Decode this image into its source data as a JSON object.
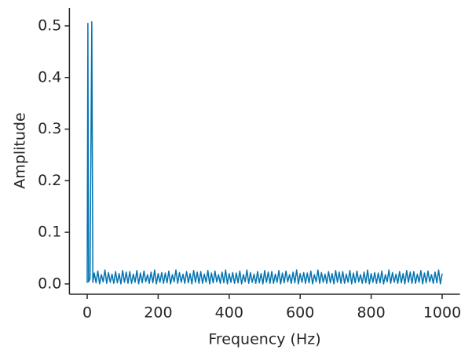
{
  "chart_data": {
    "type": "line",
    "xlabel": "Frequency (Hz)",
    "ylabel": "Amplitude",
    "xlim": [
      -50,
      1050
    ],
    "xticks": [
      0,
      200,
      400,
      600,
      800,
      1000
    ],
    "ylim": [
      -0.02,
      0.535
    ],
    "yticks": [
      {
        "value": 0,
        "label": "0.0"
      },
      0.1,
      0.2,
      0.3,
      0.4,
      0.5
    ],
    "series": [
      {
        "color": "#0173b2",
        "x": [
          0,
          2,
          4,
          8,
          13,
          16,
          20,
          25,
          30,
          35,
          40,
          45,
          50,
          55,
          60,
          65,
          70,
          75,
          80,
          85,
          90,
          95,
          100,
          105,
          110,
          115,
          120,
          125,
          130,
          135,
          140,
          145,
          150,
          155,
          160,
          165,
          170,
          175,
          180,
          185,
          190,
          195,
          200,
          205,
          210,
          215,
          220,
          225,
          230,
          235,
          240,
          245,
          250,
          255,
          260,
          265,
          270,
          275,
          280,
          285,
          290,
          295,
          300,
          305,
          310,
          315,
          320,
          325,
          330,
          335,
          340,
          345,
          350,
          355,
          360,
          365,
          370,
          375,
          380,
          385,
          390,
          395,
          400,
          405,
          410,
          415,
          420,
          425,
          430,
          435,
          440,
          445,
          450,
          455,
          460,
          465,
          470,
          475,
          480,
          485,
          490,
          495,
          500,
          505,
          510,
          515,
          520,
          525,
          530,
          535,
          540,
          545,
          550,
          555,
          560,
          565,
          570,
          575,
          580,
          585,
          590,
          595,
          600,
          605,
          610,
          615,
          620,
          625,
          630,
          635,
          640,
          645,
          650,
          655,
          660,
          665,
          670,
          675,
          680,
          685,
          690,
          695,
          700,
          705,
          710,
          715,
          720,
          725,
          730,
          735,
          740,
          745,
          750,
          755,
          760,
          765,
          770,
          775,
          780,
          785,
          790,
          795,
          800,
          805,
          810,
          815,
          820,
          825,
          830,
          835,
          840,
          845,
          850,
          855,
          860,
          865,
          870,
          875,
          880,
          885,
          890,
          895,
          900,
          905,
          910,
          915,
          920,
          925,
          930,
          935,
          940,
          945,
          950,
          955,
          960,
          965,
          970,
          975,
          980,
          985,
          990,
          995,
          1000
        ],
        "values": [
          0.002,
          0.505,
          0.004,
          0.01,
          0.508,
          0.003,
          0.021,
          0.002,
          0.025,
          0,
          0.018,
          0.004,
          0.027,
          0.001,
          0.022,
          0.003,
          0.019,
          0.001,
          0.024,
          0.002,
          0.02,
          0,
          0.026,
          0.003,
          0.023,
          0.001,
          0.024,
          0.001,
          0.019,
          0.003,
          0.026,
          0,
          0.021,
          0.002,
          0.025,
          0.004,
          0.018,
          0.001,
          0.023,
          0.002,
          0.027,
          0,
          0.02,
          0.003,
          0.022,
          0.001,
          0.021,
          0.002,
          0.025,
          0,
          0.018,
          0.004,
          0.027,
          0.001,
          0.022,
          0.003,
          0.019,
          0.001,
          0.024,
          0.002,
          0.02,
          0,
          0.026,
          0.003,
          0.023,
          0.001,
          0.024,
          0.001,
          0.019,
          0.003,
          0.026,
          0,
          0.021,
          0.002,
          0.025,
          0.004,
          0.018,
          0.001,
          0.023,
          0.002,
          0.027,
          0,
          0.02,
          0.003,
          0.022,
          0.001,
          0.021,
          0.002,
          0.025,
          0,
          0.018,
          0.004,
          0.027,
          0.001,
          0.022,
          0.003,
          0.019,
          0.001,
          0.024,
          0.002,
          0.02,
          0,
          0.026,
          0.003,
          0.023,
          0.001,
          0.024,
          0.001,
          0.019,
          0.003,
          0.026,
          0,
          0.021,
          0.002,
          0.025,
          0.004,
          0.018,
          0.001,
          0.023,
          0.002,
          0.027,
          0,
          0.02,
          0.003,
          0.022,
          0.001,
          0.021,
          0.002,
          0.025,
          0,
          0.018,
          0.004,
          0.027,
          0.001,
          0.022,
          0.003,
          0.019,
          0.001,
          0.024,
          0.002,
          0.02,
          0,
          0.026,
          0.003,
          0.023,
          0.001,
          0.024,
          0.001,
          0.019,
          0.003,
          0.026,
          0,
          0.021,
          0.002,
          0.025,
          0.004,
          0.018,
          0.001,
          0.023,
          0.002,
          0.027,
          0,
          0.02,
          0.003,
          0.022,
          0.001,
          0.021,
          0.002,
          0.025,
          0,
          0.018,
          0.004,
          0.027,
          0.001,
          0.022,
          0.003,
          0.019,
          0.001,
          0.024,
          0.002,
          0.02,
          0,
          0.026,
          0.003,
          0.023,
          0.001,
          0.024,
          0.001,
          0.019,
          0.003,
          0.026,
          0,
          0.021,
          0.002,
          0.025,
          0.004,
          0.018,
          0.001,
          0.023,
          0.002,
          0.027,
          0,
          0.02
        ]
      }
    ]
  }
}
